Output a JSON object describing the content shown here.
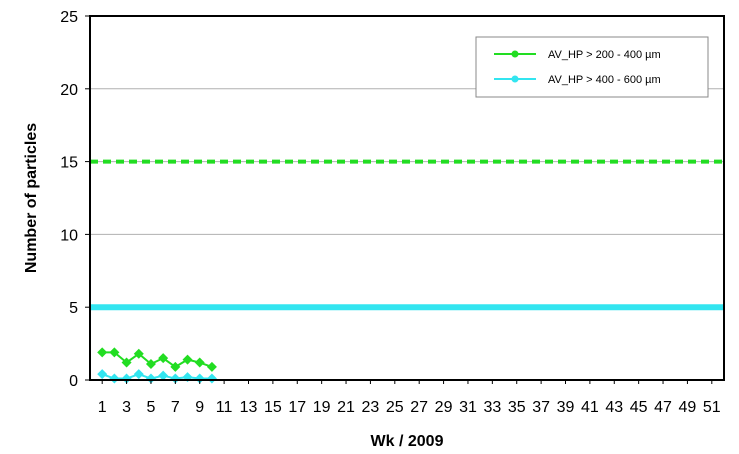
{
  "chart_data": {
    "type": "line",
    "xlabel": "Wk / 2009",
    "ylabel": "Number of particles",
    "ylim": [
      0,
      25
    ],
    "xlim": [
      0,
      52
    ],
    "yticks": [
      0,
      5,
      10,
      15,
      20,
      25
    ],
    "xticks": [
      1,
      3,
      5,
      7,
      9,
      11,
      13,
      15,
      17,
      19,
      21,
      23,
      25,
      27,
      29,
      31,
      33,
      35,
      37,
      39,
      41,
      43,
      45,
      47,
      49,
      51
    ],
    "grid": "horizontal",
    "legend_position": "top-right",
    "series": [
      {
        "name": "AV_HP >  200 - 400 µm",
        "color": "#22dd22",
        "x": [
          1,
          2,
          3,
          4,
          5,
          6,
          7,
          8,
          9,
          10,
          11,
          12,
          13
        ],
        "values": [
          1.9,
          1.9,
          1.2,
          1.8,
          1.1,
          1.5,
          0.9,
          1.4,
          1.2,
          0.9,
          null,
          null,
          null
        ]
      },
      {
        "name": "AV_HP > 400 - 600 µm",
        "color": "#33e5f0",
        "x": [
          1,
          2,
          3,
          4,
          5,
          6,
          7,
          8,
          9,
          10,
          11,
          12,
          13
        ],
        "values": [
          0.4,
          0.1,
          0.1,
          0.4,
          0.1,
          0.3,
          0.1,
          0.2,
          0.1,
          0.1,
          null,
          null,
          null
        ]
      }
    ],
    "reference_lines": [
      {
        "value": 15,
        "color": "#22dd22",
        "style": "dashed"
      },
      {
        "value": 5,
        "color": "#33e5f0",
        "style": "solid"
      }
    ]
  }
}
